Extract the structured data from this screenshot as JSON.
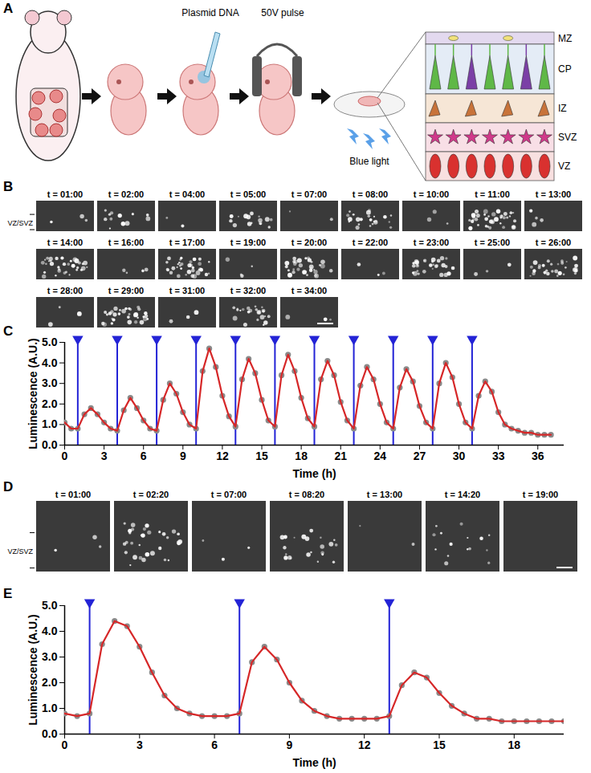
{
  "schematic": {
    "panel": "A",
    "labels": [
      "Plasmid DNA",
      "50V pulse",
      "Blue light"
    ],
    "layers": [
      {
        "name": "MZ",
        "color": "#e3d9ef"
      },
      {
        "name": "CP",
        "color": "#e4ecf6"
      },
      {
        "name": "IZ",
        "color": "#f6e6d6"
      },
      {
        "name": "SVZ",
        "color": "#f8dfe6"
      },
      {
        "name": "VZ",
        "color": "#f8e0e0"
      }
    ]
  },
  "image_panels": [
    {
      "panel": "B",
      "region_label": "VZ/SVZ",
      "source": "C",
      "frames": [
        "t = 01:00",
        "t = 02:00",
        "t = 04:00",
        "t = 05:00",
        "t = 07:00",
        "t = 08:00",
        "t = 10:00",
        "t = 11:00",
        "t = 13:00",
        "t = 14:00",
        "t = 16:00",
        "t = 17:00",
        "t = 19:00",
        "t = 20:00",
        "t = 22:00",
        "t = 23:00",
        "t = 25:00",
        "t = 26:00",
        "t = 28:00",
        "t = 29:00",
        "t = 31:00",
        "t = 32:00",
        "t = 34:00"
      ]
    },
    {
      "panel": "D",
      "region_label": "VZ/SVZ",
      "source": "E",
      "frames": [
        "t = 01:00",
        "t = 02:20",
        "t = 07:00",
        "t = 08:20",
        "t = 13:00",
        "t = 14:20",
        "t = 19:00"
      ]
    }
  ],
  "chart_data": [
    {
      "type": "line",
      "panel": "C",
      "x_label": "Time (h)",
      "y_label": "Luminescence (A.U.)",
      "color": "#d62728",
      "marker": "circle",
      "x": [
        0,
        0.5,
        1,
        1.5,
        2,
        2.5,
        3,
        3.5,
        4,
        4.5,
        5,
        5.5,
        6,
        6.5,
        7,
        7.5,
        8,
        8.5,
        9,
        9.5,
        10,
        10.5,
        11,
        11.5,
        12,
        12.5,
        13,
        13.5,
        14,
        14.5,
        15,
        15.5,
        16,
        16.5,
        17,
        17.5,
        18,
        18.5,
        19,
        19.5,
        20,
        20.5,
        21,
        21.5,
        22,
        22.5,
        23,
        23.5,
        24,
        24.5,
        25,
        25.5,
        26,
        26.5,
        27,
        27.5,
        28,
        28.5,
        29,
        29.5,
        30,
        30.5,
        31,
        31.5,
        32,
        32.5,
        33,
        33.5,
        34,
        34.5,
        35,
        35.5,
        36,
        36.5,
        37
      ],
      "values": [
        1.1,
        0.8,
        0.8,
        1.5,
        1.8,
        1.5,
        1.1,
        0.8,
        0.7,
        1.7,
        2.3,
        1.8,
        1.2,
        0.8,
        0.7,
        2.2,
        3.0,
        2.5,
        1.6,
        1.0,
        0.8,
        3.6,
        4.7,
        3.8,
        2.4,
        1.4,
        0.9,
        3.2,
        4.2,
        3.5,
        2.2,
        1.2,
        0.9,
        3.4,
        4.4,
        3.6,
        2.3,
        1.3,
        0.9,
        3.2,
        4.1,
        3.4,
        2.1,
        1.2,
        0.8,
        2.9,
        3.8,
        3.2,
        2.0,
        1.1,
        0.8,
        2.8,
        3.7,
        3.1,
        1.9,
        1.1,
        0.8,
        3.0,
        4.0,
        3.3,
        2.0,
        1.1,
        0.8,
        2.4,
        3.1,
        2.6,
        1.6,
        1.0,
        0.8,
        0.7,
        0.6,
        0.6,
        0.5,
        0.5,
        0.5
      ],
      "light_pulses": {
        "x": [
          1,
          4,
          7,
          10,
          13,
          16,
          19,
          22,
          25,
          28,
          31
        ],
        "color": "#2323d6",
        "marker": "triangle"
      },
      "xlim": [
        0,
        38
      ],
      "xticks": [
        0,
        3,
        6,
        9,
        12,
        15,
        18,
        21,
        24,
        27,
        30,
        33,
        36
      ],
      "ylim": [
        0,
        5
      ],
      "yticks": [
        0,
        1,
        2,
        3,
        4,
        5
      ],
      "grid": false
    },
    {
      "type": "line",
      "panel": "E",
      "x_label": "Time (h)",
      "y_label": "Luminescence (A.U.)",
      "color": "#d62728",
      "marker": "circle",
      "x": [
        0,
        0.5,
        1,
        1.5,
        2,
        2.5,
        3,
        3.5,
        4,
        4.5,
        5,
        5.5,
        6,
        6.5,
        7,
        7.5,
        8,
        8.5,
        9,
        9.5,
        10,
        10.5,
        11,
        11.5,
        12,
        12.5,
        13,
        13.5,
        14,
        14.5,
        15,
        15.5,
        16,
        16.5,
        17,
        17.5,
        18,
        18.5,
        19,
        19.5,
        20
      ],
      "values": [
        0.8,
        0.7,
        0.8,
        3.5,
        4.4,
        4.2,
        3.4,
        2.4,
        1.5,
        1.0,
        0.8,
        0.7,
        0.7,
        0.7,
        0.8,
        2.8,
        3.4,
        2.9,
        2.0,
        1.3,
        0.9,
        0.7,
        0.6,
        0.6,
        0.6,
        0.6,
        0.7,
        1.9,
        2.4,
        2.2,
        1.6,
        1.1,
        0.8,
        0.6,
        0.6,
        0.5,
        0.5,
        0.5,
        0.5,
        0.5,
        0.5
      ],
      "light_pulses": {
        "x": [
          1,
          7,
          13
        ],
        "color": "#2323d6",
        "marker": "triangle"
      },
      "xlim": [
        0,
        20
      ],
      "xticks": [
        0,
        3,
        6,
        9,
        12,
        15,
        18
      ],
      "ylim": [
        0,
        5
      ],
      "yticks": [
        0,
        1,
        2,
        3,
        4,
        5
      ],
      "grid": false
    }
  ]
}
